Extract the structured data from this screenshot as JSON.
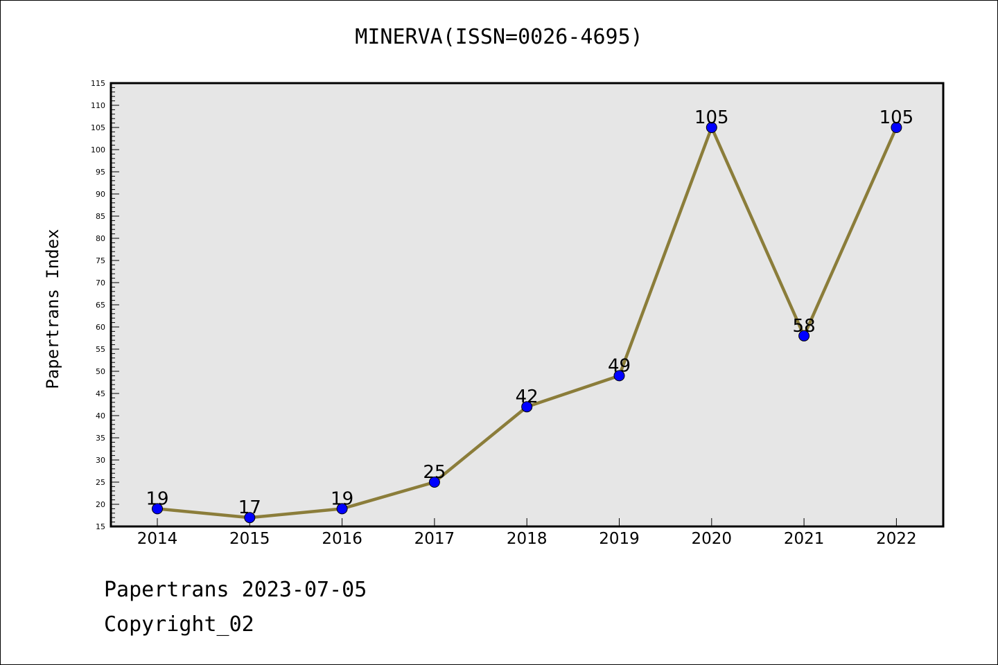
{
  "chart_data": {
    "type": "line",
    "title": "MINERVA(ISSN=0026-4695)",
    "xlabel": "",
    "ylabel": "Papertrans Index",
    "categories": [
      "2014",
      "2015",
      "2016",
      "2017",
      "2018",
      "2019",
      "2020",
      "2021",
      "2022"
    ],
    "series": [
      {
        "values": [
          19,
          17,
          19,
          25,
          42,
          49,
          105,
          58,
          105
        ]
      }
    ],
    "ylim": [
      15,
      115
    ],
    "yticks": [
      15,
      20,
      25,
      30,
      35,
      40,
      45,
      50,
      55,
      60,
      65,
      70,
      75,
      80,
      85,
      90,
      95,
      100,
      105,
      110,
      115
    ],
    "grid": false,
    "data_labels": true,
    "colors": {
      "line": "#8B7D3A",
      "marker": "#0000FF",
      "plot_background": "#E6E6E6"
    }
  },
  "footer": {
    "line1": "Papertrans 2023-07-05",
    "line2": "Copyright_02"
  }
}
